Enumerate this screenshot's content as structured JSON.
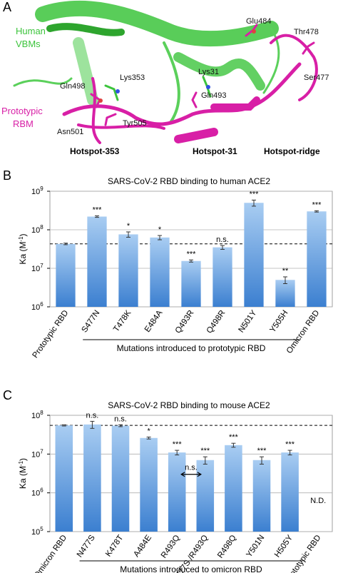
{
  "panel_a": {
    "letter": "A",
    "structure_labels": {
      "human_vbms": [
        "Human",
        "VBMs"
      ],
      "prototypic_rbm": [
        "Prototypic",
        "RBM"
      ],
      "residues": [
        "Gln498",
        "Lys353",
        "Asn501",
        "Tyr505",
        "Lys31",
        "Gln493",
        "Glu484",
        "Thr478",
        "Ser477"
      ]
    },
    "hotspots": [
      "Hotspot-353",
      "Hotspot-31",
      "Hotspot-ridge"
    ],
    "colors": {
      "ace2": "#3cc43c",
      "rbm": "#d81fa6"
    }
  },
  "chart_data": [
    {
      "panel": "B",
      "type": "bar",
      "title": "SARS-CoV-2 RBD binding to human ACE2",
      "ylabel_base": "Ka (M",
      "ylabel_exp": "-1",
      "ylabel_close": ")",
      "yscale": "log",
      "ylim": [
        1000000,
        1000000000
      ],
      "yticks": [
        {
          "base": "10",
          "exp": "6",
          "value": 1000000
        },
        {
          "base": "10",
          "exp": "7",
          "value": 10000000
        },
        {
          "base": "10",
          "exp": "8",
          "value": 100000000
        },
        {
          "base": "10",
          "exp": "9",
          "value": 1000000000
        }
      ],
      "categories": [
        "Prototypic RBD",
        "S477N",
        "T478K",
        "E484A",
        "Q493R",
        "Q498R",
        "N501Y",
        "Y505H",
        "Omicron RBD"
      ],
      "values": [
        43000000,
        220000000,
        76000000,
        63000000,
        15500000,
        35000000,
        500000000,
        5000000,
        300000000
      ],
      "errors": [
        2000000,
        10000000,
        12000000,
        8000000,
        1000000,
        4000000,
        90000000,
        1000000,
        12000000
      ],
      "significance": [
        "",
        "***",
        "*",
        "*",
        "***",
        "n.s.",
        "***",
        "**",
        "***"
      ],
      "reference_line": 43000000,
      "group_label": "Mutations introduced to prototypic RBD",
      "group_span": [
        1,
        7
      ],
      "bar_color": "#5b9bdc"
    },
    {
      "panel": "C",
      "type": "bar",
      "title": "SARS-CoV-2 RBD binding to mouse ACE2",
      "ylabel_base": "Ka (M",
      "ylabel_exp": "-1",
      "ylabel_close": ")",
      "yscale": "log",
      "ylim": [
        100000,
        100000000
      ],
      "yticks": [
        {
          "base": "10",
          "exp": "5",
          "value": 100000
        },
        {
          "base": "10",
          "exp": "6",
          "value": 1000000
        },
        {
          "base": "10",
          "exp": "7",
          "value": 10000000
        },
        {
          "base": "10",
          "exp": "8",
          "value": 100000000
        }
      ],
      "categories": [
        "Omicron RBD",
        "N477S",
        "K478T",
        "A484E",
        "R493Q",
        "N477S /R493Q",
        "R498Q",
        "Y501N",
        "H505Y",
        "Prototypic RBD"
      ],
      "values": [
        55000000,
        58000000,
        54000000,
        26000000,
        11000000,
        7000000,
        17000000,
        7000000,
        11000000,
        null
      ],
      "errors": [
        2000000,
        12000000,
        3000000,
        1500000,
        1500000,
        1500000,
        2000000,
        1500000,
        1500000,
        null
      ],
      "significance": [
        "",
        "n.s.",
        "n.s.",
        "*",
        "***",
        "***",
        "***",
        "***",
        "***",
        "N.D."
      ],
      "reference_line": 55000000,
      "group_label": "Mutations introduced to omicron RBD",
      "group_span": [
        1,
        8
      ],
      "bracket_label": "n.s.",
      "bracket_between": [
        4,
        5
      ],
      "bar_color": "#5b9bdc"
    }
  ]
}
